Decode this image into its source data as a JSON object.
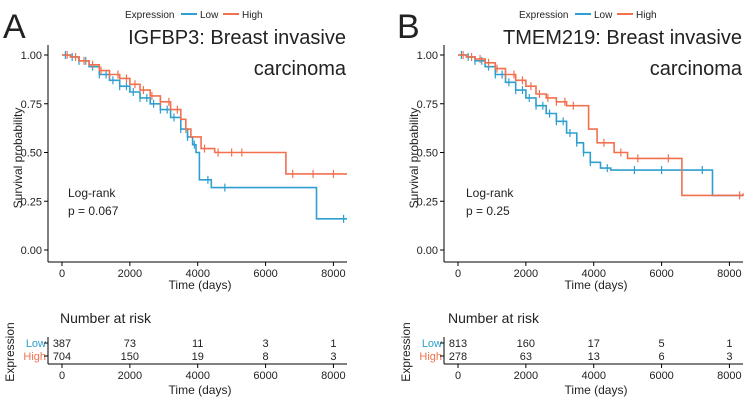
{
  "chart_data": [
    {
      "type": "line",
      "panel_label": "A",
      "title_line1": "IGFBP3: Breast invasive",
      "title_line2": "carcinoma",
      "legend_title": "Expression",
      "xlabel": "Time (days)",
      "ylabel": "Survival probability",
      "xlim": [
        0,
        8400
      ],
      "ylim": [
        0,
        1.05
      ],
      "x_ticks": [
        "0",
        "2000",
        "4000",
        "6000",
        "8000"
      ],
      "y_ticks": [
        "0.00",
        "0.25",
        "0.50",
        "0.75",
        "1.00"
      ],
      "annotation_line1": "Log-rank",
      "annotation_line2": "p = 0.067",
      "series": [
        {
          "name": "Low",
          "color": "#2E9FCF",
          "x": [
            0,
            250,
            500,
            800,
            1100,
            1400,
            1700,
            2000,
            2300,
            2600,
            2900,
            3200,
            3500,
            3700,
            3850,
            3950,
            4050,
            4400,
            5000,
            6000,
            7000,
            7500,
            8400
          ],
          "y": [
            1.0,
            0.99,
            0.97,
            0.94,
            0.9,
            0.87,
            0.84,
            0.81,
            0.78,
            0.75,
            0.72,
            0.68,
            0.62,
            0.58,
            0.54,
            0.5,
            0.36,
            0.32,
            0.32,
            0.32,
            0.32,
            0.16,
            0.16
          ],
          "censor_x": [
            100,
            300,
            500,
            700,
            900,
            1100,
            1300,
            1500,
            1700,
            1900,
            2100,
            2300,
            2500,
            2700,
            2900,
            3100,
            3300,
            3500,
            3700,
            3900,
            4300,
            4800,
            8300
          ]
        },
        {
          "name": "High",
          "color": "#F2704E",
          "x": [
            0,
            250,
            500,
            800,
            1100,
            1400,
            1700,
            2000,
            2300,
            2600,
            2900,
            3200,
            3500,
            3650,
            3800,
            4100,
            4500,
            5500,
            6200,
            6600,
            8400
          ],
          "y": [
            1.0,
            0.99,
            0.97,
            0.95,
            0.92,
            0.9,
            0.88,
            0.85,
            0.82,
            0.79,
            0.76,
            0.72,
            0.67,
            0.62,
            0.58,
            0.52,
            0.5,
            0.5,
            0.5,
            0.39,
            0.39
          ],
          "censor_x": [
            150,
            400,
            650,
            900,
            1150,
            1400,
            1650,
            1900,
            2150,
            2400,
            2650,
            2900,
            3150,
            3400,
            3650,
            4200,
            4600,
            5000,
            5300,
            6800,
            7400,
            8000
          ]
        }
      ],
      "risk_table": {
        "title": "Number at risk",
        "ylabel": "Expression",
        "xlabel": "Time (days)",
        "times": [
          "0",
          "2000",
          "4000",
          "6000",
          "8000"
        ],
        "rows": [
          {
            "label": "Low",
            "color": "#2E9FCF",
            "values": [
              "387",
              "73",
              "11",
              "3",
              "1"
            ]
          },
          {
            "label": "High",
            "color": "#F2704E",
            "values": [
              "704",
              "150",
              "19",
              "8",
              "3"
            ]
          }
        ]
      }
    },
    {
      "type": "line",
      "panel_label": "B",
      "title_line1": "TMEM219: Breast invasive",
      "title_line2": "carcinoma",
      "legend_title": "Expression",
      "xlabel": "Time (days)",
      "ylabel": "Survival probability",
      "xlim": [
        0,
        8400
      ],
      "ylim": [
        0,
        1.05
      ],
      "x_ticks": [
        "0",
        "2000",
        "4000",
        "6000",
        "8000"
      ],
      "y_ticks": [
        "0.00",
        "0.25",
        "0.50",
        "0.75",
        "1.00"
      ],
      "annotation_line1": "Log-rank",
      "annotation_line2": "p = 0.25",
      "series": [
        {
          "name": "Low",
          "color": "#2E9FCF",
          "x": [
            0,
            250,
            500,
            800,
            1100,
            1400,
            1700,
            2000,
            2300,
            2600,
            2900,
            3200,
            3500,
            3700,
            3900,
            4200,
            4500,
            5500,
            6500,
            7000,
            7500,
            8400
          ],
          "y": [
            1.0,
            0.99,
            0.97,
            0.94,
            0.9,
            0.86,
            0.82,
            0.78,
            0.74,
            0.7,
            0.66,
            0.6,
            0.55,
            0.5,
            0.45,
            0.42,
            0.41,
            0.41,
            0.41,
            0.41,
            0.28,
            0.28
          ],
          "censor_x": [
            100,
            300,
            500,
            700,
            900,
            1100,
            1300,
            1500,
            1700,
            1900,
            2100,
            2300,
            2500,
            2700,
            2900,
            3100,
            3300,
            3500,
            3700,
            3900,
            4400,
            5200,
            6000,
            7200
          ]
        },
        {
          "name": "High",
          "color": "#F2704E",
          "x": [
            0,
            250,
            500,
            800,
            1100,
            1400,
            1700,
            2000,
            2300,
            2600,
            2900,
            3200,
            3500,
            3850,
            4100,
            4600,
            5000,
            5800,
            6400,
            6600,
            8400
          ],
          "y": [
            1.0,
            0.99,
            0.98,
            0.96,
            0.93,
            0.9,
            0.87,
            0.84,
            0.8,
            0.78,
            0.76,
            0.74,
            0.74,
            0.62,
            0.55,
            0.5,
            0.47,
            0.47,
            0.47,
            0.28,
            0.29
          ],
          "censor_x": [
            150,
            400,
            650,
            900,
            1150,
            1400,
            1650,
            1900,
            2150,
            2400,
            2650,
            2900,
            3150,
            3400,
            4300,
            4800,
            5300,
            6200,
            8300
          ]
        }
      ],
      "risk_table": {
        "title": "Number at risk",
        "ylabel": "Expression",
        "xlabel": "Time (days)",
        "times": [
          "0",
          "2000",
          "4000",
          "6000",
          "8000"
        ],
        "rows": [
          {
            "label": "Low",
            "color": "#2E9FCF",
            "values": [
              "813",
              "160",
              "17",
              "5",
              "1"
            ]
          },
          {
            "label": "High",
            "color": "#F2704E",
            "values": [
              "278",
              "63",
              "13",
              "6",
              "3"
            ]
          }
        ]
      }
    }
  ]
}
